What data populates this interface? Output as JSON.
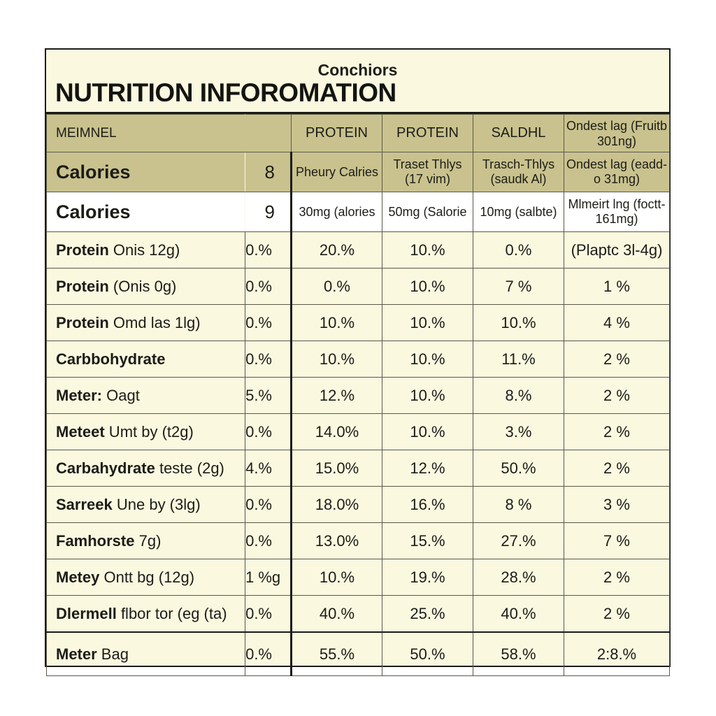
{
  "brand": "Conchiors",
  "title": "NUTRITION INFOROMATION",
  "header": [
    "MEIMNEL",
    "",
    "PROTEIN",
    "PROTEIN",
    "SALDHL",
    "Ondest lag (Fruitb 301ng)"
  ],
  "sub_rows": [
    {
      "name": "Calories",
      "amount": "8",
      "c1": "Pheury Calries",
      "c2": "Traset Thlys (17 vim)",
      "c3": "Trasch-Thlys (saudk Al)",
      "c4": "Ondest lag (eadd-o 31mg)"
    },
    {
      "name": "Calories",
      "amount": "9",
      "c1": "30mg (alories",
      "c2": "50mg (Salorie",
      "c3": "10mg (salbte)",
      "c4": "Mlmeirt lng (foctt- 161mg)"
    }
  ],
  "rows": [
    {
      "bold": "Protein",
      "rest": " Onis 12g)",
      "pct": "0.%",
      "c1": "20.%",
      "c2": "10.%",
      "c3": "0.%",
      "c4": "(Plaptc 3l-4g)"
    },
    {
      "bold": "Protein",
      "rest": " (Onis 0g)",
      "pct": "0.%",
      "c1": "0.%",
      "c2": "10.%",
      "c3": "7 %",
      "c4": "1 %"
    },
    {
      "bold": "Protein",
      "rest": " Omd las 1lg)",
      "pct": "0.%",
      "c1": "10.%",
      "c2": "10.%",
      "c3": "10.%",
      "c4": "4 %"
    },
    {
      "bold": "Carbbohydrate",
      "rest": "",
      "pct": "0.%",
      "c1": "10.%",
      "c2": "10.%",
      "c3": "11.%",
      "c4": "2 %"
    },
    {
      "bold": "Meter:",
      "rest": " Oagt",
      "pct": "5.%",
      "c1": "12.%",
      "c2": "10.%",
      "c3": "8.%",
      "c4": "2 %"
    },
    {
      "bold": "Meteet",
      "rest": " Umt by (t2g)",
      "pct": "0.%",
      "c1": "14.0%",
      "c2": "10.%",
      "c3": "3.%",
      "c4": "2 %"
    },
    {
      "bold": "Carbahydrate",
      "rest": " teste (2g)",
      "pct": "4.%",
      "c1": "15.0%",
      "c2": "12.%",
      "c3": "50.%",
      "c4": "2 %"
    },
    {
      "bold": "Sarreek",
      "rest": " Une by (3lg)",
      "pct": "0.%",
      "c1": "18.0%",
      "c2": "16.%",
      "c3": "8 %",
      "c4": "3 %"
    },
    {
      "bold": "Famhorste",
      "rest": " 7g)",
      "pct": "0.%",
      "c1": "13.0%",
      "c2": "15.%",
      "c3": "27.%",
      "c4": "7 %"
    },
    {
      "bold": "Metey",
      "rest": " Ontt bg (12g)",
      "pct": "1 %g",
      "c1": "10.%",
      "c2": "19.%",
      "c3": "28.%",
      "c4": "2 %"
    },
    {
      "bold": "Dlermell",
      "rest": " flbor tor (eg (ta)",
      "pct": "0.%",
      "c1": "40.%",
      "c2": "25.%",
      "c3": "40.%",
      "c4": "2 %"
    },
    {
      "bold": "Meter",
      "rest": " Bag",
      "pct": "0.%",
      "c1": "55.%",
      "c2": "50.%",
      "c3": "58.%",
      "c4": "2:8.%"
    }
  ]
}
